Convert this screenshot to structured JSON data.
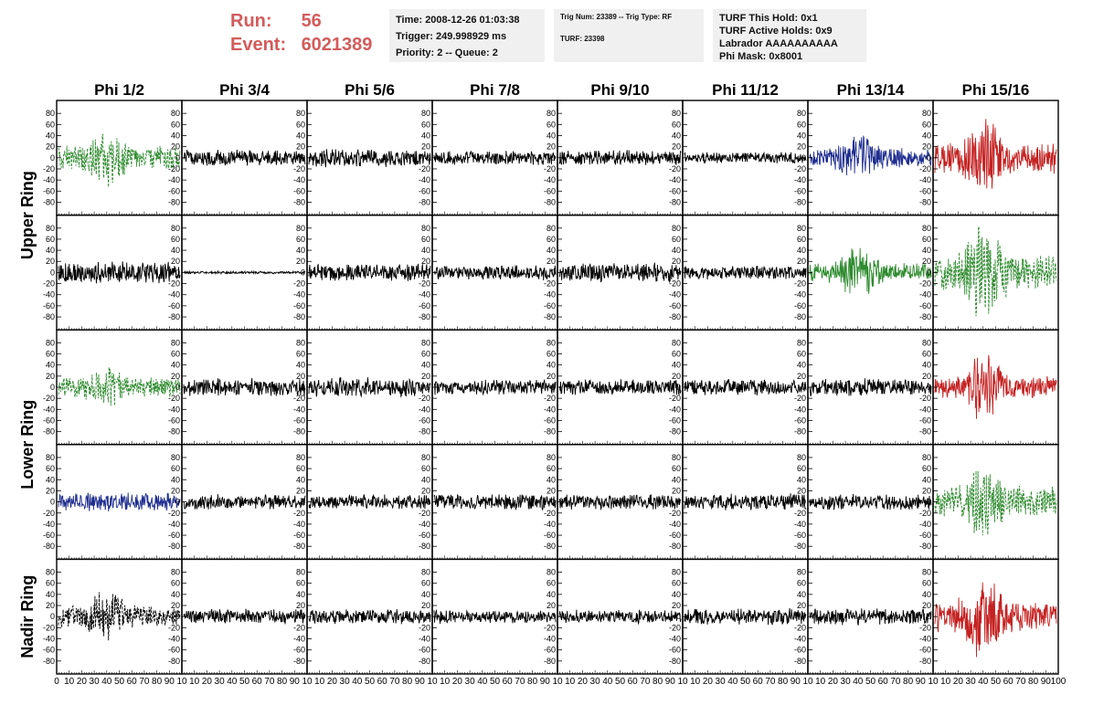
{
  "header": {
    "run_label": "Run:",
    "run_value": "56",
    "event_label": "Event:",
    "event_value": "6021389",
    "time_info": [
      "Time: 2008-12-26 01:03:38",
      "Trigger: 249.998929 ms",
      "Priority: 2 -- Queue: 2"
    ],
    "trig_info": [
      "Trig Num: 23389 -- Trig Type: RF",
      "",
      "TURF: 23398"
    ],
    "turf_info": [
      "TURF This Hold: 0x1",
      "TURF Active Holds: 0x9",
      "Labrador AAAAAAAAAA",
      "Phi Mask: 0x8001"
    ]
  },
  "colors": {
    "black": "#000000",
    "green": "#2e8b2e",
    "blue": "#1f2e8f",
    "red": "#c42222",
    "run_text": "#d45b5b",
    "info_bg": "#f0f0f0"
  },
  "chart_data": {
    "type": "line",
    "title": "",
    "column_labels": [
      "Phi 1/2",
      "Phi 3/4",
      "Phi 5/6",
      "Phi 7/8",
      "Phi 9/10",
      "Phi 11/12",
      "Phi 13/14",
      "Phi 15/16"
    ],
    "row_labels": [
      "Upper Ring",
      "",
      "Lower Ring",
      "",
      "Nadir Ring"
    ],
    "xlim": [
      0,
      100
    ],
    "ylim": [
      -100,
      100
    ],
    "y_ticks": [
      80,
      60,
      40,
      20,
      0,
      -20,
      -40,
      -60,
      -80
    ],
    "x_ticks": [
      0,
      10,
      20,
      30,
      40,
      50,
      60,
      70,
      80,
      90,
      100
    ],
    "x_tick_labels_first": [
      "0",
      "10",
      "20",
      "30",
      "40",
      "50",
      "60",
      "70",
      "80",
      "90",
      "10"
    ],
    "x_tick_labels_mid": [
      "10",
      "20",
      "30",
      "40",
      "50",
      "60",
      "70",
      "80",
      "90",
      "10"
    ],
    "x_tick_labels_last": [
      "10",
      "20",
      "30",
      "40",
      "50",
      "60",
      "70",
      "80",
      "90",
      "100"
    ],
    "panels": [
      [
        {
          "color": "green",
          "style": "dashed",
          "amplitude": 18,
          "burst": 30
        },
        {
          "color": "black",
          "style": "solid",
          "amplitude": 12,
          "burst": 0
        },
        {
          "color": "black",
          "style": "solid",
          "amplitude": 14,
          "burst": 0
        },
        {
          "color": "black",
          "style": "solid",
          "amplitude": 10,
          "burst": 0
        },
        {
          "color": "black",
          "style": "solid",
          "amplitude": 11,
          "burst": 0
        },
        {
          "color": "black",
          "style": "solid",
          "amplitude": 9,
          "burst": 0
        },
        {
          "color": "blue",
          "style": "solid",
          "amplitude": 14,
          "burst": 25
        },
        {
          "color": "red",
          "style": "solid",
          "amplitude": 22,
          "burst": 45
        }
      ],
      [
        {
          "color": "black",
          "style": "solid",
          "amplitude": 16,
          "burst": 0
        },
        {
          "color": "black",
          "style": "solid",
          "amplitude": 2,
          "burst": 0
        },
        {
          "color": "black",
          "style": "solid",
          "amplitude": 13,
          "burst": 0
        },
        {
          "color": "black",
          "style": "solid",
          "amplitude": 11,
          "burst": 0
        },
        {
          "color": "black",
          "style": "solid",
          "amplitude": 14,
          "burst": 0
        },
        {
          "color": "black",
          "style": "solid",
          "amplitude": 10,
          "burst": 0
        },
        {
          "color": "green",
          "style": "solid",
          "amplitude": 14,
          "burst": 30
        },
        {
          "color": "green",
          "style": "dashed",
          "amplitude": 26,
          "burst": 60
        }
      ],
      [
        {
          "color": "green",
          "style": "dashed",
          "amplitude": 14,
          "burst": 22
        },
        {
          "color": "black",
          "style": "solid",
          "amplitude": 13,
          "burst": 0
        },
        {
          "color": "black",
          "style": "solid",
          "amplitude": 14,
          "burst": 0
        },
        {
          "color": "black",
          "style": "solid",
          "amplitude": 11,
          "burst": 0
        },
        {
          "color": "black",
          "style": "solid",
          "amplitude": 12,
          "burst": 0
        },
        {
          "color": "black",
          "style": "solid",
          "amplitude": 12,
          "burst": 0
        },
        {
          "color": "black",
          "style": "solid",
          "amplitude": 13,
          "burst": 0
        },
        {
          "color": "red",
          "style": "solid",
          "amplitude": 16,
          "burst": 40
        }
      ],
      [
        {
          "color": "blue",
          "style": "solid",
          "amplitude": 14,
          "burst": 0
        },
        {
          "color": "black",
          "style": "solid",
          "amplitude": 11,
          "burst": 0
        },
        {
          "color": "black",
          "style": "solid",
          "amplitude": 11,
          "burst": 0
        },
        {
          "color": "black",
          "style": "solid",
          "amplitude": 12,
          "burst": 0
        },
        {
          "color": "black",
          "style": "solid",
          "amplitude": 11,
          "burst": 0
        },
        {
          "color": "black",
          "style": "solid",
          "amplitude": 12,
          "burst": 0
        },
        {
          "color": "black",
          "style": "solid",
          "amplitude": 12,
          "burst": 0
        },
        {
          "color": "green",
          "style": "dashed",
          "amplitude": 22,
          "burst": 45
        }
      ],
      [
        {
          "color": "black",
          "style": "dashed",
          "amplitude": 16,
          "burst": 28
        },
        {
          "color": "black",
          "style": "solid",
          "amplitude": 11,
          "burst": 0
        },
        {
          "color": "black",
          "style": "solid",
          "amplitude": 11,
          "burst": 0
        },
        {
          "color": "black",
          "style": "solid",
          "amplitude": 10,
          "burst": 0
        },
        {
          "color": "black",
          "style": "solid",
          "amplitude": 10,
          "burst": 0
        },
        {
          "color": "black",
          "style": "solid",
          "amplitude": 12,
          "burst": 0
        },
        {
          "color": "black",
          "style": "solid",
          "amplitude": 12,
          "burst": 0
        },
        {
          "color": "red",
          "style": "solid",
          "amplitude": 22,
          "burst": 50
        }
      ]
    ]
  }
}
